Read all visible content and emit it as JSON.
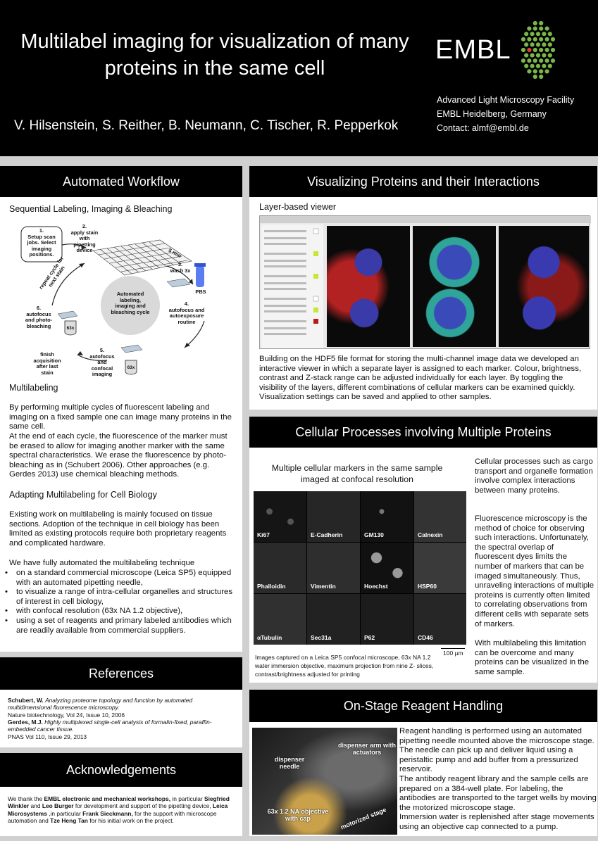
{
  "header": {
    "title": "Multilabel imaging for visualization of many proteins in the same cell",
    "authors": "V. Hilsenstein, S. Reither, B. Neumann, C. Tischer, R. Pepperkok",
    "logo_text": "EMBL",
    "affiliation": [
      "Advanced Light Microscopy Facility",
      "EMBL Heidelberg, Germany",
      "Contact: almf@embl.de"
    ],
    "logo_color": "#7ab648",
    "logo_accent": "#e53935"
  },
  "workflow": {
    "title": "Automated Workflow",
    "subtitle": "Sequential Labeling, Imaging & Bleaching",
    "diagram": {
      "step1": "1.\nSetup scan\njobs. Select\nimaging\npositions.",
      "step2": "2.\napply stain\nwith\npipetting\ndevice",
      "step3": "3.\nwash 3x",
      "pbs": "PBS",
      "time": "5 min",
      "step4": "4.\nautofocus and\nautoexposure\nroutine",
      "step5": "5.\nautofocus\nand\nconfocal\nimaging",
      "step6": "6.\nautofocus\nand photo-\nbleaching",
      "repeat": "repeat cycle for\nnext stain",
      "finish": "finish\nacquisition\nafter last\nstain",
      "center": "Automated\nlabeling,\nimaging and\nbleaching cycle",
      "obj1": "63x",
      "obj2": "63x"
    },
    "multilabeling_heading": "Multilabeling",
    "multilabeling_p1": "By performing multiple cycles of fluorescent labeling and imaging on a fixed sample one can image many proteins in the same cell.",
    "multilabeling_p2": "At the end of each cycle, the fluorescence of the marker must be erased to allow for imaging another marker with the same spectral characteristics. We erase the fluorescence by photo-bleaching as in (Schubert 2006). Other approaches (e.g. Gerdes 2013)  use  chemical bleaching methods.",
    "adapting_heading": "Adapting Multilabeling for Cell Biology",
    "adapting_p1": "Existing work on multilabeling is mainly focused on tissue sections. Adoption of the technique in cell biology has been limited as existing protocols require both proprietary reagents and complicated hardware.",
    "adapting_p2": "We have fully automated the multilabeling technique",
    "bullets": [
      "on a standard commercial microscope (Leica SP5) equipped with an automated pipetting needle,",
      "to visualize a range of intra-cellular organelles and structures of interest in cell biology,",
      "with confocal resolution (63x NA 1.2 objective),",
      "using a set of reagents and primary labeled antibodies which are readily available from commercial suppliers."
    ]
  },
  "references": {
    "title": "References",
    "ref1_author": "Schubert, W.",
    "ref1_title": "Analyzing proteome topology and function by automated multidimensional fluorescence microscopy.",
    "ref1_journal": "Nature biotechnology, Vol 24, Issue 10, 2006",
    "ref2_author": "Gerdes, M.J.",
    "ref2_title": "Highly multiplexed single-cell analysis of formalin-fixed, paraffin-embedded cancer tissue.",
    "ref2_journal": "PNAS Vol 110, Issue 29, 2013"
  },
  "acknowledgements": {
    "title": "Acknowledgements",
    "t1": "We thank the ",
    "b1": "EMBL electronic and mechanical workshops,",
    "t2": " in particular ",
    "b2": "Siegfried Winkler",
    "t3": " and ",
    "b3": "Leo Burger",
    "t4": " for development and support of the pipetting device, ",
    "b4": "Leica Microsystems",
    "t5": " ,in particular ",
    "b5": "Frank Sieckmann,",
    "t6": " for the support with microscope automation and ",
    "b6": "Tze Heng Tan",
    "t7": " for his initial work on the project."
  },
  "visualizing": {
    "title": "Visualizing Proteins and their Interactions",
    "subtitle": "Layer-based viewer",
    "body": "Building on the HDF5 file format for storing the multi-channel image data we developed an interactive viewer in which a separate layer is assigned to each marker. Colour, brightness, contrast and Z-stack range can be adjusted individually for each layer. By toggling the visibility of the layers, different combinations of cellular markers can be examined quickly. Visualization settings can be saved and applied to other samples."
  },
  "cellular": {
    "title": "Cellular Processes involving Multiple Proteins",
    "grid_heading": "Multiple cellular markers in the same sample imaged at confocal resolution",
    "markers": [
      "Ki67",
      "E-Cadherin",
      "GM130",
      "Calnexin",
      "Phalloidin",
      "Vimentin",
      "Hoechst",
      "HSP60",
      "αTubulin",
      "Sec31a",
      "P62",
      "CD46"
    ],
    "scale_bar": "100 µm",
    "caption": "Images captured on a Leica SP5 confocal microscope, 63x NA 1.2 water immersion objective, maximum projection from nine Z- slices, contrast/brightness adjusted for printing",
    "p1": "Cellular processes such as cargo transport and organelle formation involve complex interactions between many proteins.",
    "p2": "Fluorescence microscopy is the method of choice for observing such interactions. Unfortunately, the spectral overlap of fluorescent dyes limits the number of markers that can be imaged simultaneously. Thus, unraveling  interactions of multiple proteins is currently often limited to correlating observations from different cells with separate sets of markers.",
    "p3": "With multilabeling this limitation can be overcome and many proteins can be visualized in the same sample."
  },
  "onstage": {
    "title": "On-Stage Reagent Handling",
    "photo_labels": {
      "arm": "dispenser arm with\nactuators",
      "needle": "dispenser\nneedle",
      "objective": "63x 1.2 NA objective\nwith cap",
      "stage": "motorized  stage"
    },
    "p1": "Reagent handling is performed using an automated pipetting needle mounted above the microscope stage. The needle can pick up and deliver liquid using a peristaltic pump and add buffer from a pressurized reservoir.",
    "p2": "The antibody reagent library and the sample cells are prepared on a 384-well plate. For labeling, the antibodies are transported to the target wells by moving the motorized microscope stage.",
    "p3": "Immersion water is replenished after stage movements using an objective cap connected to a pump."
  }
}
